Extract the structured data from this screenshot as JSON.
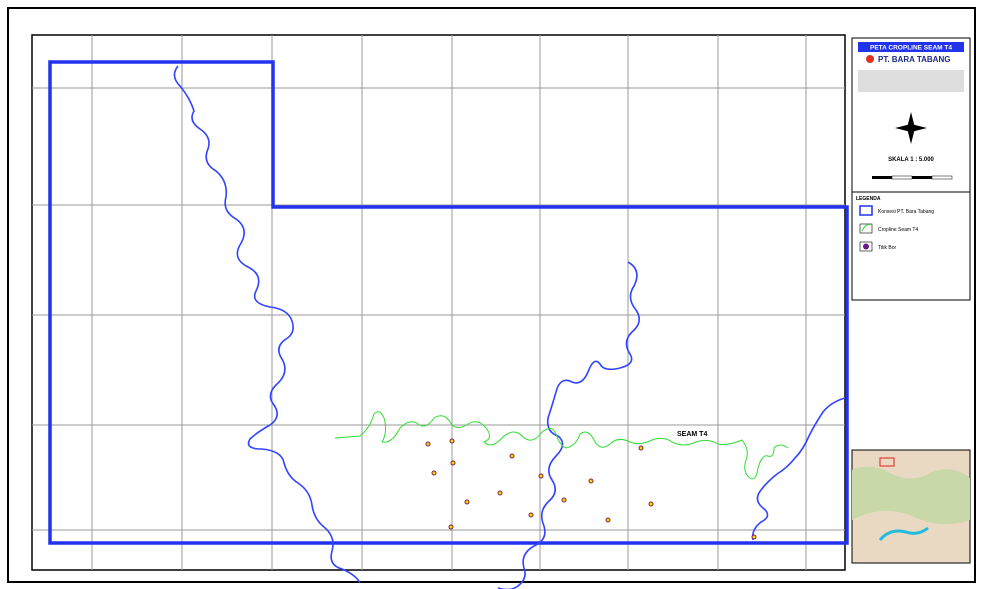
{
  "title": "PETA CROPLINE SEAM T4",
  "company": "PT. BARA TABANG",
  "scale": "SKALA 1 : 5.000",
  "legend": {
    "heading": "LEGENDA",
    "items": [
      "Konsesi PT. Bara Tabang",
      "Cropline Seam T4",
      "Titik Bor"
    ]
  },
  "map_labels": {
    "seam": "SEAM T4"
  }
}
